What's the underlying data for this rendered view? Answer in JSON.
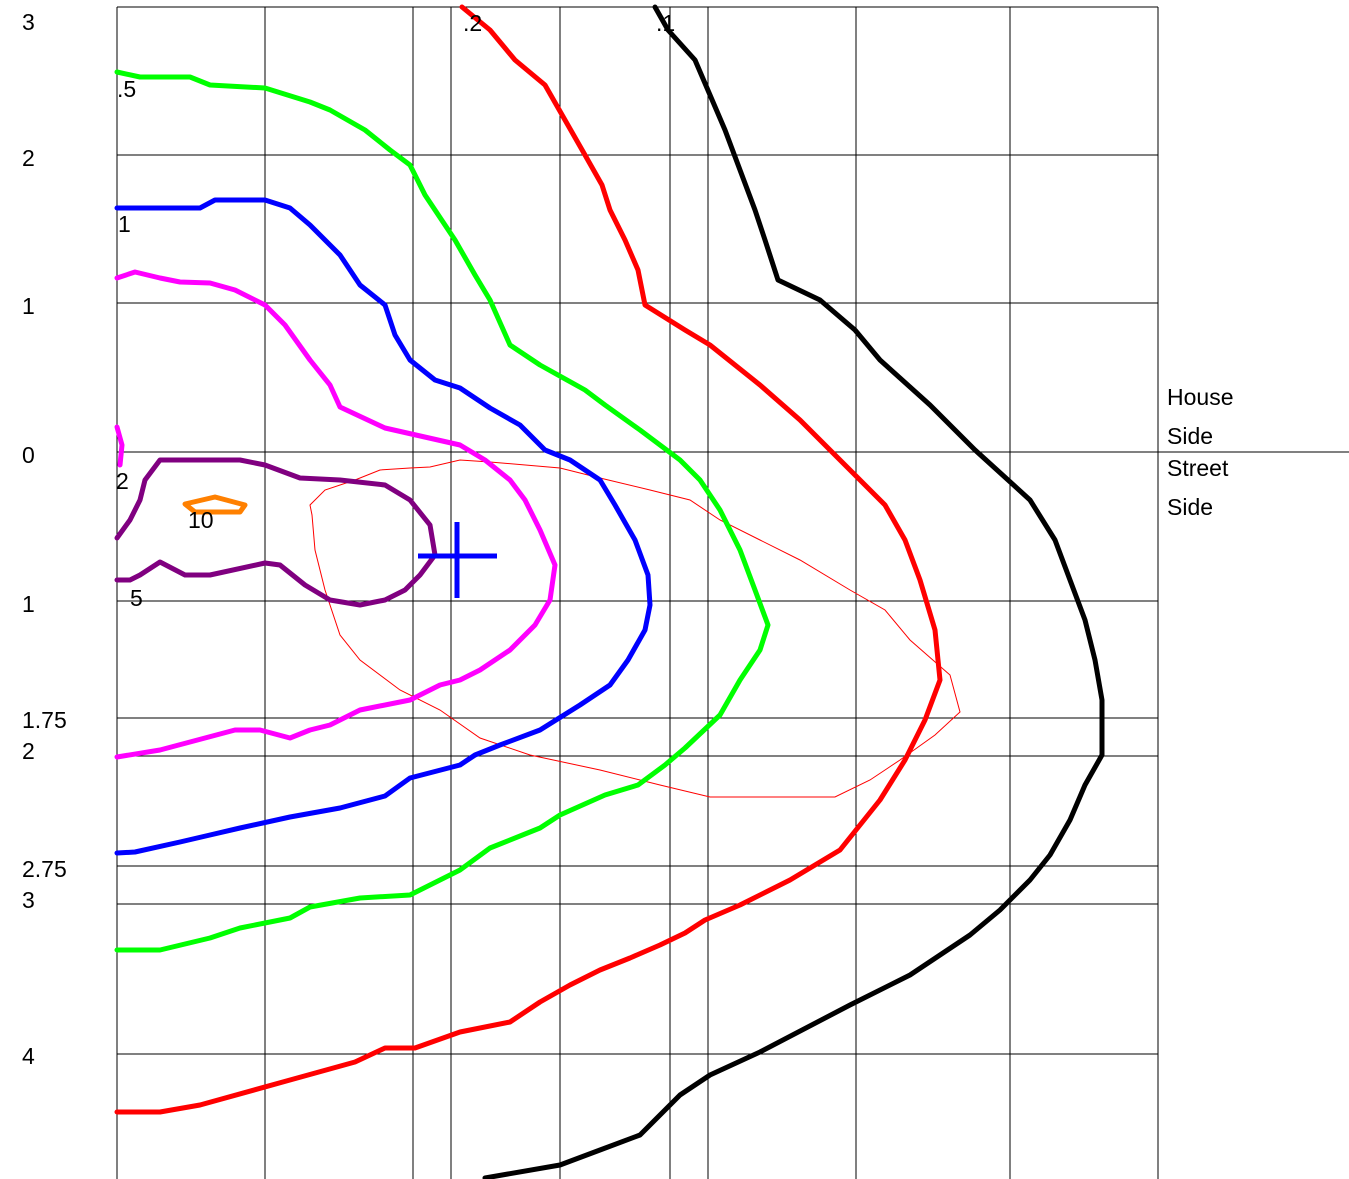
{
  "y_labels": [
    "3",
    "2",
    "1",
    "0",
    "1",
    "1.75",
    "2",
    "2.75",
    "3",
    "4"
  ],
  "contour_labels": [
    ".2",
    ".1",
    ".5",
    "1",
    "2",
    "10",
    "5"
  ],
  "side_labels": [
    "House",
    "Side",
    "Street",
    "Side"
  ]
}
